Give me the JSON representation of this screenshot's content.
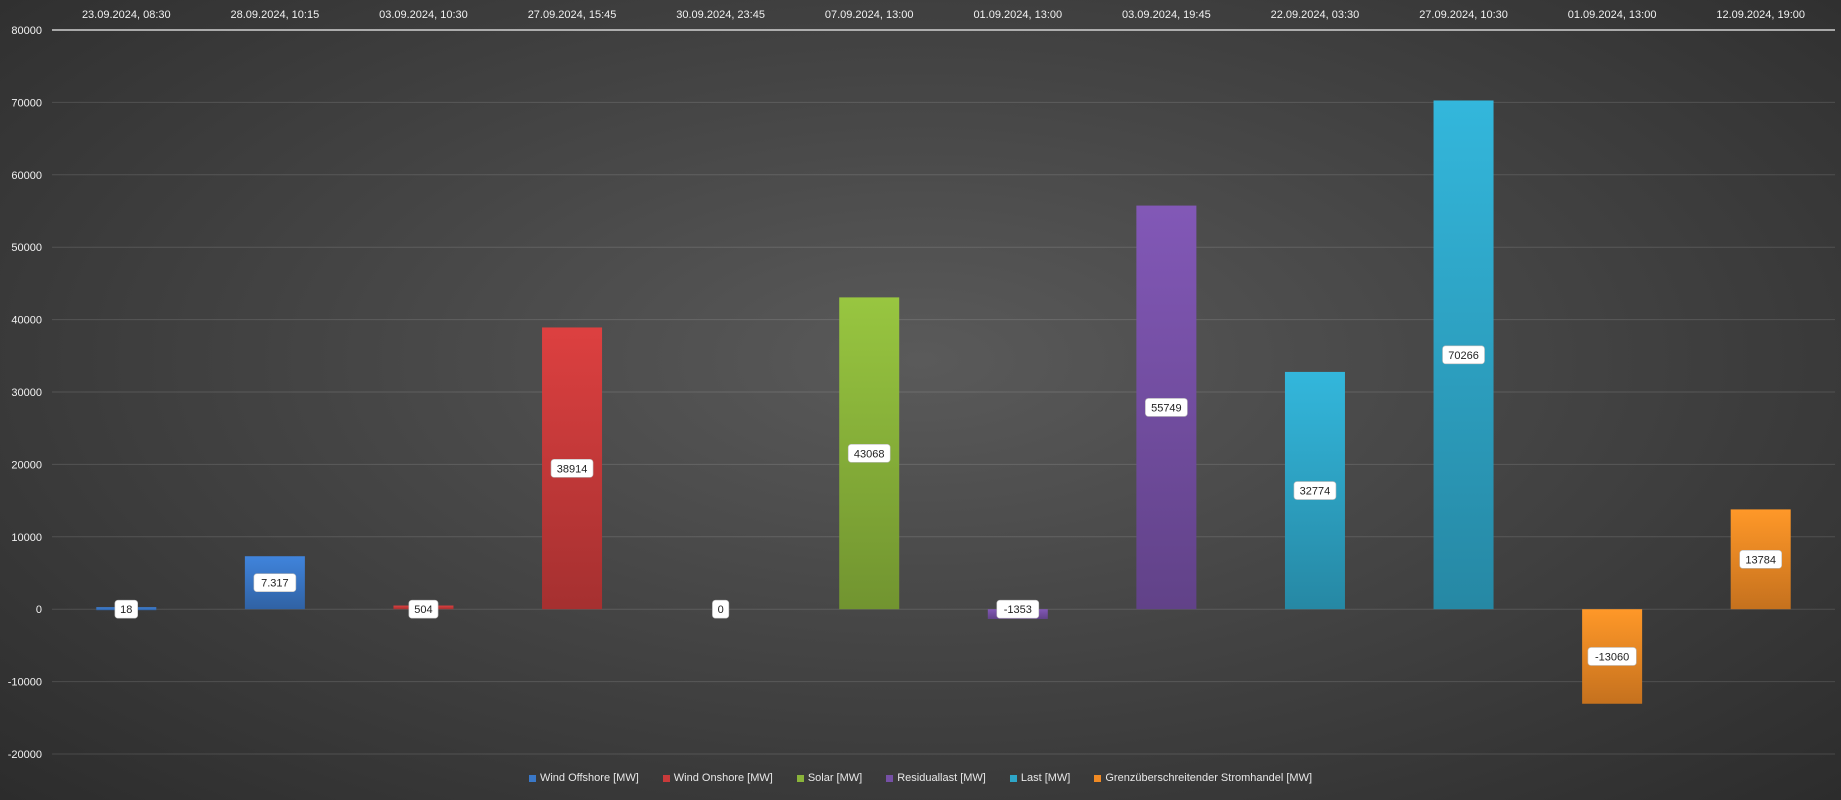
{
  "chart_data": {
    "type": "bar",
    "categories": [
      "23.09.2024, 08:30",
      "28.09.2024, 10:15",
      "03.09.2024, 10:30",
      "27.09.2024, 15:45",
      "30.09.2024, 23:45",
      "07.09.2024, 13:00",
      "01.09.2024, 13:00",
      "03.09.2024, 19:45",
      "22.09.2024, 03:30",
      "27.09.2024, 10:30",
      "01.09.2024, 13:00",
      "12.09.2024, 19:00"
    ],
    "values": [
      18,
      7317,
      504,
      38914,
      0,
      43068,
      -1353,
      55749,
      32774,
      70266,
      -13060,
      13784
    ],
    "data_labels": [
      "18",
      "7.317",
      "504",
      "38914",
      "0",
      "43068",
      "-1353",
      "55749",
      "32774",
      "70266",
      "-13060",
      "13784"
    ],
    "bar_series_index": [
      0,
      0,
      1,
      1,
      2,
      2,
      3,
      3,
      4,
      4,
      5,
      5
    ],
    "series": [
      {
        "name": "Wind Offshore [MW]",
        "color": "#3a78c8"
      },
      {
        "name": "Wind Onshore [MW]",
        "color": "#c93a3a"
      },
      {
        "name": "Solar [MW]",
        "color": "#8ab43a"
      },
      {
        "name": "Residuallast [MW]",
        "color": "#7650a6"
      },
      {
        "name": "Last [MW]",
        "color": "#2ea6c8"
      },
      {
        "name": "Grenzüberschreitender Stromhandel [MW]",
        "color": "#f08a24"
      }
    ],
    "ylim": [
      -20000,
      80000
    ],
    "yticks": [
      "80000",
      "70000",
      "60000",
      "50000",
      "40000",
      "30000",
      "20000",
      "10000",
      "0",
      "-10000",
      "-20000"
    ],
    "ytick_values": [
      80000,
      70000,
      60000,
      50000,
      40000,
      30000,
      20000,
      10000,
      0,
      -10000,
      -20000
    ],
    "xaxis_position": "top",
    "grid": true,
    "legend": "bottom"
  }
}
